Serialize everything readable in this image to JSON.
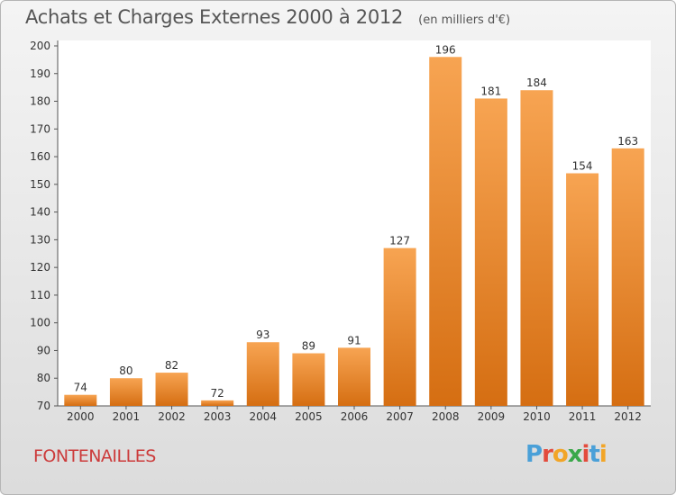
{
  "header": {
    "title": "Achats et Charges Externes 2000 à 2012",
    "subtitle": "(en milliers d'€)"
  },
  "footer": {
    "town": "FONTENAILLES",
    "logo_text": "Proxiti"
  },
  "colors": {
    "bar_top": "#f7a452",
    "bar_bottom": "#d56e12",
    "title_text": "#555555",
    "town_text": "#cc3b3b"
  },
  "chart_data": {
    "type": "bar",
    "title": "Achats et Charges Externes 2000 à 2012",
    "subtitle": "(en milliers d'€)",
    "xlabel": "",
    "ylabel": "",
    "categories": [
      "2000",
      "2001",
      "2002",
      "2003",
      "2004",
      "2005",
      "2006",
      "2007",
      "2008",
      "2009",
      "2010",
      "2011",
      "2012"
    ],
    "values": [
      74,
      80,
      82,
      72,
      93,
      89,
      91,
      127,
      196,
      181,
      184,
      154,
      163
    ],
    "ylim": [
      70,
      200
    ],
    "yticks": [
      70,
      80,
      90,
      100,
      110,
      120,
      130,
      140,
      150,
      160,
      170,
      180,
      190,
      200
    ],
    "grid": false,
    "data_labels": true
  }
}
